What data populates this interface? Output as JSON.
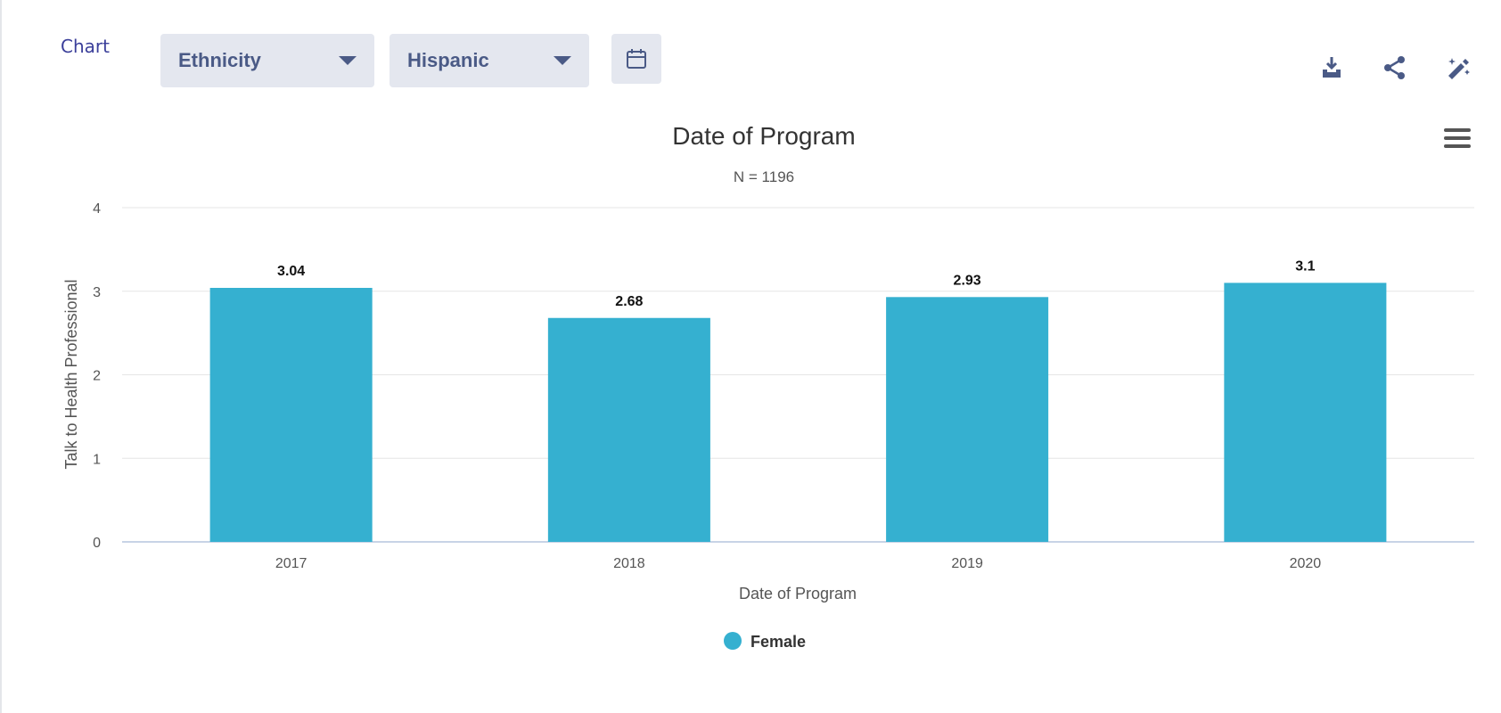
{
  "header": {
    "tab_label": "Chart",
    "filters": [
      {
        "value": "Ethnicity"
      },
      {
        "value": "Hispanic"
      }
    ],
    "icons": [
      "calendar-icon",
      "download-icon",
      "share-icon",
      "edit-icon",
      "menu-icon"
    ],
    "accent_color": "#4a5a86"
  },
  "chart_data": {
    "type": "bar",
    "title": "Date of Program",
    "subtitle": "N = 1196",
    "xlabel": "Date of Program",
    "ylabel": "Talk to Health Professional",
    "categories": [
      "2017",
      "2018",
      "2019",
      "2020"
    ],
    "series": [
      {
        "name": "Female",
        "values": [
          3.04,
          2.68,
          2.93,
          3.1
        ],
        "color": "#35b0d0"
      }
    ],
    "data_labels": [
      "3.04",
      "2.68",
      "2.93",
      "3.1"
    ],
    "ylim": [
      0,
      4
    ],
    "yticks": [
      "0",
      "1",
      "2",
      "3",
      "4"
    ],
    "grid": true,
    "legend_position": "bottom-center"
  }
}
